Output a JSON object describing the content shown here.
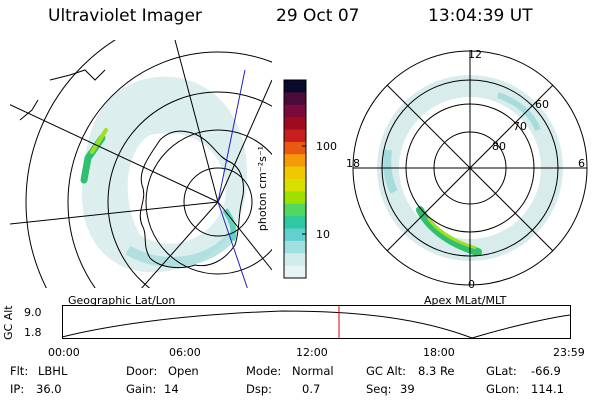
{
  "header": {
    "title": "Ultraviolet Imager",
    "date": "29 Oct 07",
    "time": "13:04:39 UT"
  },
  "geo_panel": {
    "label": "Geographic Lat/Lon"
  },
  "mlt_panel": {
    "label": "Apex MLat/MLT",
    "hour_labels": [
      "12",
      "18",
      "6",
      "0"
    ],
    "lat_labels": [
      "60",
      "70",
      "80"
    ]
  },
  "colorbar": {
    "unit_label": "photon cm⁻²s⁻¹",
    "ticks": [
      "100",
      "10"
    ],
    "colors": [
      "#0a0a2a",
      "#4a0a3a",
      "#7a0a3a",
      "#a00a20",
      "#c81e1e",
      "#e85a10",
      "#f59a0a",
      "#f0c800",
      "#d8e000",
      "#a0e000",
      "#50d860",
      "#30c8a0",
      "#60d0d0",
      "#a0e0e0",
      "#d0ecec",
      "#e8f4f4"
    ]
  },
  "altitude_plot": {
    "y_label": "GC Alt",
    "y_ticks": [
      "9.0",
      "1.8"
    ],
    "x_ticks": [
      "00:00",
      "06:00",
      "12:00",
      "18:00",
      "23:59"
    ],
    "marker_color": "#e00000"
  },
  "status": {
    "flt_label": "Flt:",
    "flt_value": "LBHL",
    "door_label": "Door:",
    "door_value": "Open",
    "mode_label": "Mode:",
    "mode_value": "Normal",
    "gcalt_label": "GC Alt:",
    "gcalt_value": "8.3 Re",
    "glat_label": "GLat:",
    "glat_value": "-66.9",
    "ip_label": "IP:",
    "ip_value": "36.0",
    "gain_label": "Gain:",
    "gain_value": "14",
    "dsp_label": "Dsp:",
    "dsp_value": "0.7",
    "seq_label": "Seq:",
    "seq_value": "39",
    "glon_label": "GLon:",
    "glon_value": "114.1"
  }
}
